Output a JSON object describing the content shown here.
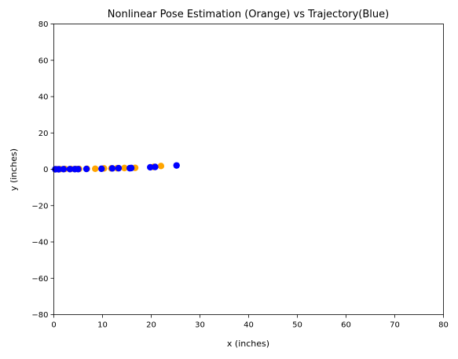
{
  "chart_data": {
    "type": "scatter",
    "title": "Nonlinear Pose Estimation (Orange) vs Trajectory(Blue)",
    "xlabel": "x (inches)",
    "ylabel": "y (inches)",
    "xlim": [
      0,
      80
    ],
    "ylim": [
      -80,
      80
    ],
    "xticks": [
      0,
      10,
      20,
      30,
      40,
      50,
      60,
      70,
      80
    ],
    "yticks": [
      -80,
      -60,
      -40,
      -20,
      0,
      20,
      40,
      60,
      80
    ],
    "grid": false,
    "series": [
      {
        "color": "#FFA500",
        "x": [
          0.6,
          1.3,
          2.3,
          3.5,
          4.5,
          5.2,
          6.8,
          8.5,
          10.3,
          11.8,
          13.0,
          14.5,
          16.7,
          20.5,
          22.0
        ],
        "y": [
          0.1,
          0.1,
          0.2,
          0.2,
          0.2,
          0.2,
          0.3,
          0.3,
          0.5,
          0.5,
          0.6,
          0.7,
          0.8,
          1.3,
          1.8
        ]
      },
      {
        "color": "#0000FF",
        "x": [
          0.3,
          1.0,
          2.0,
          3.3,
          4.3,
          5.0,
          6.7,
          9.8,
          12.0,
          13.3,
          15.6,
          15.9,
          19.8,
          20.8,
          25.2
        ],
        "y": [
          0.0,
          0.0,
          0.1,
          0.1,
          0.1,
          0.1,
          0.2,
          0.3,
          0.5,
          0.6,
          0.6,
          0.7,
          1.1,
          1.3,
          2.1
        ]
      }
    ]
  }
}
